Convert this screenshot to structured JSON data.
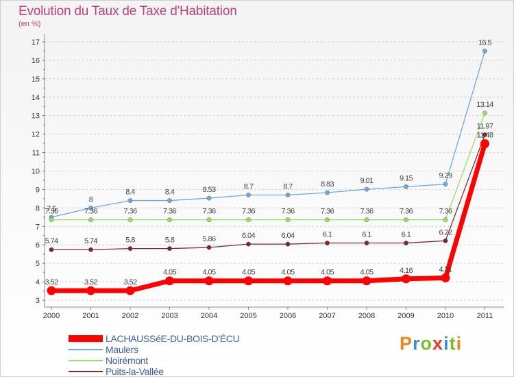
{
  "header": {
    "title": "Evolution du Taux de Taxe d'Habitation",
    "subtitle": "(en %)"
  },
  "logo": {
    "text": "Proxiti"
  },
  "colors": {
    "title": "#c0407a",
    "legend_text": "#3d5fa8",
    "grid": "#d0d0d0",
    "logo_letters": [
      "#e8891c",
      "#3a8fd6",
      "#7cbd2a",
      "#e23b2d",
      "#3a8fd6",
      "#7cbd2a",
      "#e8891c"
    ]
  },
  "chart_data": {
    "type": "line",
    "title": "Evolution du Taux de Taxe d'Habitation",
    "subtitle": "(en %)",
    "xlabel": "",
    "ylabel": "",
    "x": [
      "2000",
      "2001",
      "2002",
      "2003",
      "2004",
      "2005",
      "2006",
      "2007",
      "2008",
      "2009",
      "2010",
      "2011"
    ],
    "ylim": [
      3,
      17
    ],
    "yticks": [
      3,
      4,
      5,
      6,
      7,
      8,
      9,
      10,
      11,
      12,
      13,
      14,
      15,
      16,
      17
    ],
    "grid": "horizontal dashed",
    "legend_position": "bottom-left",
    "series": [
      {
        "name": "LACHAUSSéE-DU-BOIS-D'ÉCU",
        "color": "#ff0000",
        "labels": [
          "3.52",
          "3.52",
          "3.52",
          "4.05",
          "4.05",
          "4.05",
          "4.05",
          "4.05",
          "4.05",
          "4.16",
          "4.21",
          "11.48"
        ],
        "values": [
          3.52,
          3.52,
          3.52,
          4.05,
          4.05,
          4.05,
          4.05,
          4.05,
          4.05,
          4.16,
          4.21,
          11.48
        ]
      },
      {
        "name": "Maulers",
        "color": "#6fa8dc",
        "labels": [
          "7.5",
          "8",
          "8.4",
          "8.4",
          "8.53",
          "8.7",
          "8.7",
          "8.83",
          "9.01",
          "9.15",
          "9.29",
          "16.5"
        ],
        "values": [
          7.5,
          8,
          8.4,
          8.4,
          8.53,
          8.7,
          8.7,
          8.83,
          9.01,
          9.15,
          9.29,
          16.5
        ]
      },
      {
        "name": "Noirémont",
        "color": "#99dd66",
        "labels": [
          "7.36",
          "7.36",
          "7.36",
          "7.36",
          "7.36",
          "7.36",
          "7.36",
          "7.36",
          "7.36",
          "7.36",
          "7.36",
          "13.14"
        ],
        "values": [
          7.36,
          7.36,
          7.36,
          7.36,
          7.36,
          7.36,
          7.36,
          7.36,
          7.36,
          7.36,
          7.36,
          13.14
        ]
      },
      {
        "name": "Puits-la-Vallée",
        "color": "#7a2a2a",
        "labels": [
          "5.74",
          "5.74",
          "5.8",
          "5.8",
          "5.86",
          "6.04",
          "6.04",
          "6.1",
          "6.1",
          "6.1",
          "6.22",
          "11.97"
        ],
        "values": [
          5.74,
          5.74,
          5.8,
          5.8,
          5.86,
          6.04,
          6.04,
          6.1,
          6.1,
          6.1,
          6.22,
          11.97
        ]
      }
    ]
  }
}
